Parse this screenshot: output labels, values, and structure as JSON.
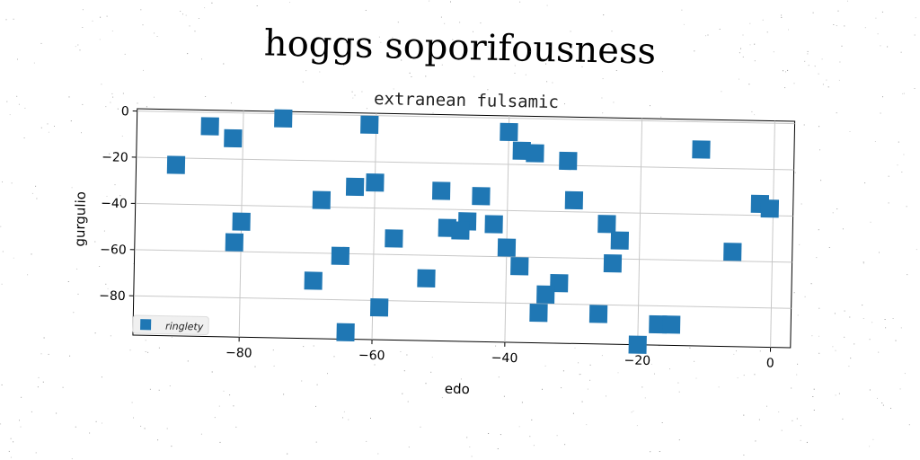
{
  "suptitle": "hoggs soporifousness",
  "chart_data": {
    "type": "scatter",
    "title": "extranean fulsamic",
    "xlabel": "edo",
    "ylabel": "gurgulio",
    "xlim": [
      -96,
      3
    ],
    "ylim": [
      -97,
      1
    ],
    "xticks": [
      -80,
      -60,
      -40,
      -20,
      0
    ],
    "yticks": [
      0,
      -20,
      -40,
      -60,
      -80
    ],
    "xtick_labels": [
      "−80",
      "−60",
      "−40",
      "−20",
      "0"
    ],
    "ytick_labels": [
      "0",
      "−20",
      "−40",
      "−60",
      "−80"
    ],
    "grid": true,
    "legend_position": "lower-left",
    "series": [
      {
        "name": "ringlety",
        "color": "#1f77b4",
        "marker": "square",
        "points": [
          [
            -90,
            -23
          ],
          [
            -85,
            -6
          ],
          [
            -81.5,
            -11
          ],
          [
            -74,
            -2
          ],
          [
            -61,
            -4
          ],
          [
            -80,
            -47
          ],
          [
            -81,
            -56
          ],
          [
            -68,
            -37
          ],
          [
            -63,
            -31
          ],
          [
            -60,
            -29
          ],
          [
            -65,
            -61
          ],
          [
            -69,
            -72
          ],
          [
            -57,
            -53
          ],
          [
            -64,
            -94
          ],
          [
            -59,
            -83
          ],
          [
            -50,
            -32
          ],
          [
            -49,
            -48
          ],
          [
            -46,
            -45
          ],
          [
            -47,
            -49
          ],
          [
            -52,
            -70
          ],
          [
            -44,
            -34
          ],
          [
            -42,
            -46
          ],
          [
            -40,
            -56
          ],
          [
            -38,
            -64
          ],
          [
            -40,
            -6
          ],
          [
            -38,
            -14
          ],
          [
            -36,
            -15
          ],
          [
            -31,
            -18
          ],
          [
            -30,
            -35
          ],
          [
            -25,
            -45
          ],
          [
            -23,
            -52
          ],
          [
            -24,
            -62
          ],
          [
            -32,
            -71
          ],
          [
            -34,
            -76
          ],
          [
            -35,
            -84
          ],
          [
            -26,
            -84
          ],
          [
            -20,
            -97
          ],
          [
            -17,
            -88
          ],
          [
            -15,
            -88
          ],
          [
            -11,
            -12
          ],
          [
            -6,
            -56
          ],
          [
            -2,
            -35
          ],
          [
            -0.5,
            -37
          ]
        ]
      }
    ]
  }
}
